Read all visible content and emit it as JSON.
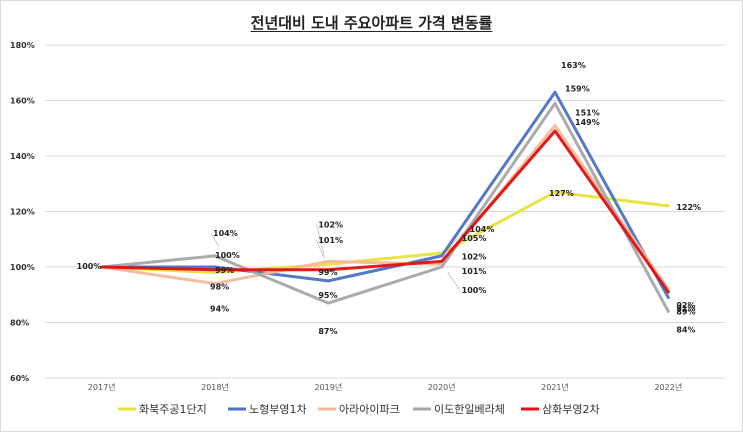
{
  "chart_data": {
    "type": "line",
    "title": "전년대비 도내 주요아파트 가격 변동률",
    "categories": [
      "2017년",
      "2018년",
      "2019년",
      "2020년",
      "2021년",
      "2022년"
    ],
    "ylim": [
      60,
      180
    ],
    "yticks": [
      "60%",
      "80%",
      "100%",
      "120%",
      "140%",
      "160%",
      "180%"
    ],
    "ytick_values": [
      60,
      80,
      100,
      120,
      140,
      160,
      180
    ],
    "grid": true,
    "legend_position": "bottom",
    "series": [
      {
        "name": "화북주공1단지",
        "color": "#e8e23a",
        "values": [
          100,
          98,
          101,
          105,
          127,
          122
        ]
      },
      {
        "name": "노형부영1차",
        "color": "#4a72c4",
        "values": [
          100,
          100,
          95,
          104,
          163,
          89
        ]
      },
      {
        "name": "아라아이파크",
        "color": "#f2b99a",
        "values": [
          100,
          94,
          102,
          101,
          151,
          92
        ]
      },
      {
        "name": "이도한일베라체",
        "color": "#a6a6a6",
        "values": [
          100,
          104,
          87,
          100,
          159,
          84
        ]
      },
      {
        "name": "삼화부영2차",
        "color": "#e01010",
        "values": [
          100,
          99,
          99,
          102,
          149,
          91
        ]
      }
    ],
    "data_labels": [
      {
        "text": "100%",
        "cat": 0,
        "value": 100
      },
      {
        "text": "104%",
        "cat": 1,
        "value": 104
      },
      {
        "text": "100%",
        "cat": 1,
        "value": 100
      },
      {
        "text": "99%",
        "cat": 1,
        "value": 99
      },
      {
        "text": "98%",
        "cat": 1,
        "value": 98
      },
      {
        "text": "94%",
        "cat": 1,
        "value": 94
      },
      {
        "text": "102%",
        "cat": 2,
        "value": 102
      },
      {
        "text": "101%",
        "cat": 2,
        "value": 101
      },
      {
        "text": "99%",
        "cat": 2,
        "value": 99
      },
      {
        "text": "95%",
        "cat": 2,
        "value": 95
      },
      {
        "text": "87%",
        "cat": 2,
        "value": 87
      },
      {
        "text": "104%",
        "cat": 3,
        "value": 104
      },
      {
        "text": "105%",
        "cat": 3,
        "value": 105
      },
      {
        "text": "102%",
        "cat": 3,
        "value": 102
      },
      {
        "text": "101%",
        "cat": 3,
        "value": 101
      },
      {
        "text": "100%",
        "cat": 3,
        "value": 100
      },
      {
        "text": "163%",
        "cat": 4,
        "value": 163
      },
      {
        "text": "159%",
        "cat": 4,
        "value": 159
      },
      {
        "text": "151%",
        "cat": 4,
        "value": 151
      },
      {
        "text": "149%",
        "cat": 4,
        "value": 149
      },
      {
        "text": "127%",
        "cat": 4,
        "value": 127
      },
      {
        "text": "122%",
        "cat": 5,
        "value": 122
      },
      {
        "text": "92%",
        "cat": 5,
        "value": 92
      },
      {
        "text": "91%",
        "cat": 5,
        "value": 91
      },
      {
        "text": "89%",
        "cat": 5,
        "value": 89
      },
      {
        "text": "84%",
        "cat": 5,
        "value": 84
      }
    ]
  }
}
